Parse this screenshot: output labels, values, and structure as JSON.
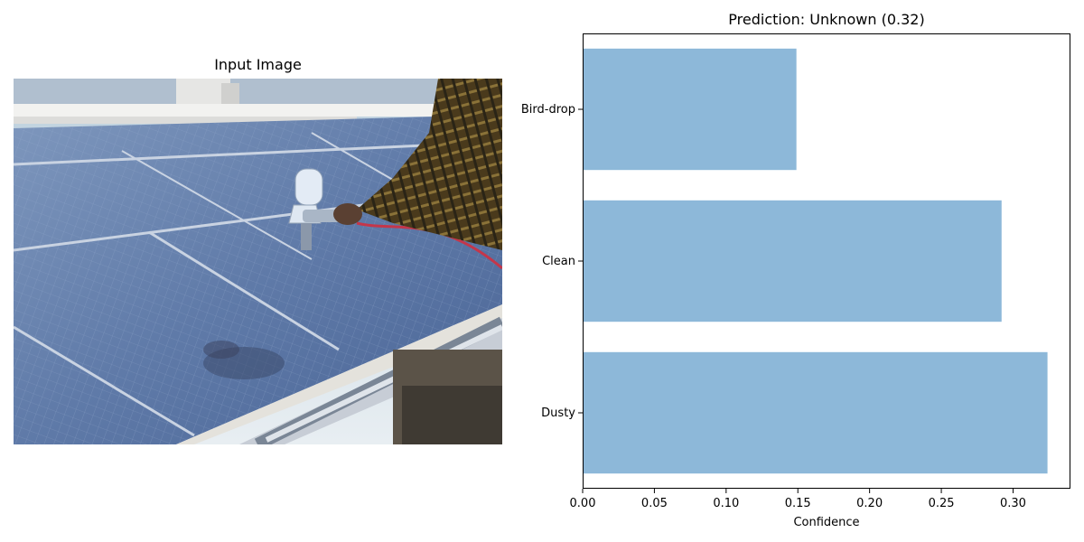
{
  "left_panel": {
    "title": "Input Image",
    "image_subject": "person spray-cleaning rooftop solar panels"
  },
  "chart_data": {
    "type": "bar",
    "orientation": "horizontal",
    "title": "Prediction: Unknown (0.32)",
    "xlabel": "Confidence",
    "ylabel": "",
    "categories": [
      "Dusty",
      "Clean",
      "Bird-drop"
    ],
    "values": [
      0.324,
      0.292,
      0.149
    ],
    "xlim": [
      0,
      0.34
    ],
    "xticks": [
      "0.00",
      "0.05",
      "0.10",
      "0.15",
      "0.20",
      "0.25",
      "0.30"
    ],
    "grid": false,
    "bar_color": "#8db8d9"
  }
}
